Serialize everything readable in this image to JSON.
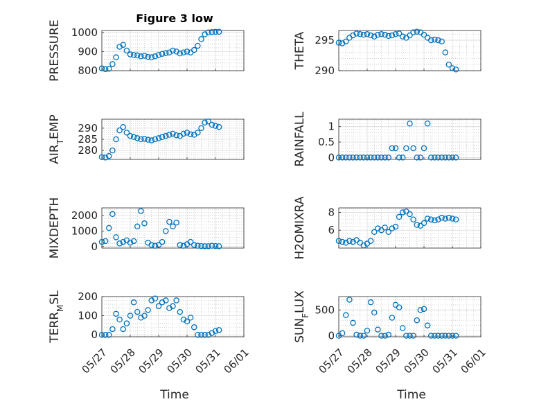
{
  "figure": {
    "title": "Figure 3 low",
    "xlabel": "Time",
    "x_tick_labels": [
      "05/27",
      "05/28",
      "05/29",
      "05/30",
      "05/31",
      "06/01"
    ]
  },
  "colors": {
    "marker": "#0072BD",
    "grid": "#c8c8c8",
    "axis": "#262626"
  },
  "chart_data": [
    {
      "type": "scatter",
      "marker": "circle-open",
      "ylabel": "PRESSURE",
      "title": "Figure 3 low",
      "x_range": [
        "05/27",
        "06/01"
      ],
      "ylim": [
        800,
        1010
      ],
      "yticks": [
        800,
        900,
        1000
      ],
      "series": [
        {
          "x": [
            "05/27 00:00",
            "05/27 03:00",
            "05/27 06:00",
            "05/27 09:00",
            "05/27 12:00",
            "05/27 15:00",
            "05/27 18:00",
            "05/27 21:00",
            "05/28 00:00",
            "05/28 03:00",
            "05/28 06:00",
            "05/28 09:00",
            "05/28 12:00",
            "05/28 15:00",
            "05/28 18:00",
            "05/28 21:00",
            "05/29 00:00",
            "05/29 03:00",
            "05/29 06:00",
            "05/29 09:00",
            "05/29 12:00",
            "05/29 15:00",
            "05/29 18:00",
            "05/29 21:00",
            "05/30 00:00",
            "05/30 03:00",
            "05/30 06:00",
            "05/30 09:00",
            "05/30 12:00",
            "05/30 15:00",
            "05/30 18:00",
            "05/30 21:00",
            "05/31 00:00",
            "05/31 03:00"
          ],
          "y": [
            812,
            808,
            810,
            835,
            870,
            925,
            935,
            905,
            885,
            882,
            880,
            875,
            878,
            872,
            870,
            875,
            882,
            888,
            892,
            895,
            905,
            900,
            890,
            895,
            900,
            895,
            908,
            930,
            965,
            990,
            1000,
            1002,
            1003,
            1003
          ]
        }
      ]
    },
    {
      "type": "scatter",
      "marker": "circle-open",
      "ylabel": "THETA",
      "x_range": [
        "05/27",
        "06/01"
      ],
      "ylim": [
        290,
        296.6
      ],
      "yticks": [
        290,
        295
      ],
      "series": [
        {
          "x": [
            "05/27 00:00",
            "05/27 03:00",
            "05/27 06:00",
            "05/27 09:00",
            "05/27 12:00",
            "05/27 15:00",
            "05/27 18:00",
            "05/27 21:00",
            "05/28 00:00",
            "05/28 03:00",
            "05/28 06:00",
            "05/28 09:00",
            "05/28 12:00",
            "05/28 15:00",
            "05/28 18:00",
            "05/28 21:00",
            "05/29 00:00",
            "05/29 03:00",
            "05/29 06:00",
            "05/29 09:00",
            "05/29 12:00",
            "05/29 15:00",
            "05/29 18:00",
            "05/29 21:00",
            "05/30 00:00",
            "05/30 03:00",
            "05/30 06:00",
            "05/30 09:00",
            "05/30 12:00",
            "05/30 15:00",
            "05/30 18:00",
            "05/30 21:00",
            "05/31 00:00",
            "05/31 03:00"
          ],
          "y": [
            294.6,
            294.5,
            294.8,
            295.4,
            295.8,
            296.1,
            296.0,
            295.9,
            296.0,
            295.8,
            295.6,
            295.9,
            296.0,
            295.9,
            295.7,
            295.8,
            296.0,
            296.1,
            295.6,
            295.4,
            295.8,
            296.3,
            296.4,
            296.3,
            295.9,
            295.4,
            295.0,
            295.1,
            295.0,
            294.8,
            293.0,
            291.0,
            290.4,
            290.2
          ]
        }
      ]
    },
    {
      "type": "scatter",
      "marker": "circle-open",
      "ylabel": "AIR_TEMP",
      "x_range": [
        "05/27",
        "06/01"
      ],
      "ylim": [
        276,
        294
      ],
      "yticks": [
        280,
        285,
        290
      ],
      "series": [
        {
          "x": [
            "05/27 00:00",
            "05/27 03:00",
            "05/27 06:00",
            "05/27 09:00",
            "05/27 12:00",
            "05/27 15:00",
            "05/27 18:00",
            "05/27 21:00",
            "05/28 00:00",
            "05/28 03:00",
            "05/28 06:00",
            "05/28 09:00",
            "05/28 12:00",
            "05/28 15:00",
            "05/28 18:00",
            "05/28 21:00",
            "05/29 00:00",
            "05/29 03:00",
            "05/29 06:00",
            "05/29 09:00",
            "05/29 12:00",
            "05/29 15:00",
            "05/29 18:00",
            "05/29 21:00",
            "05/30 00:00",
            "05/30 03:00",
            "05/30 06:00",
            "05/30 09:00",
            "05/30 12:00",
            "05/30 15:00",
            "05/30 18:00",
            "05/30 21:00",
            "05/31 00:00",
            "05/31 03:00"
          ],
          "y": [
            277.0,
            276.8,
            277.5,
            280.0,
            285.0,
            289.0,
            290.5,
            288.0,
            286.5,
            286.0,
            285.5,
            285.0,
            285.2,
            284.8,
            284.5,
            285.0,
            285.5,
            286.0,
            286.5,
            287.0,
            287.5,
            286.8,
            286.5,
            287.5,
            288.0,
            287.2,
            287.0,
            288.0,
            290.0,
            292.5,
            293.0,
            291.5,
            291.0,
            290.5
          ]
        }
      ]
    },
    {
      "type": "scatter",
      "marker": "circle-open",
      "ylabel": "RAINFALL",
      "x_range": [
        "05/27",
        "06/01"
      ],
      "ylim": [
        -0.06,
        1.24
      ],
      "yticks": [
        0,
        0.5,
        1
      ],
      "series": [
        {
          "x": [
            "05/27 00:00",
            "05/27 03:00",
            "05/27 06:00",
            "05/27 09:00",
            "05/27 12:00",
            "05/27 15:00",
            "05/27 18:00",
            "05/27 21:00",
            "05/28 00:00",
            "05/28 03:00",
            "05/28 06:00",
            "05/28 09:00",
            "05/28 12:00",
            "05/28 15:00",
            "05/28 18:00",
            "05/28 21:00",
            "05/29 00:00",
            "05/29 03:00",
            "05/29 06:00",
            "05/29 09:00",
            "05/29 12:00",
            "05/29 15:00",
            "05/29 18:00",
            "05/29 21:00",
            "05/30 00:00",
            "05/30 03:00",
            "05/30 06:00",
            "05/30 09:00",
            "05/30 12:00",
            "05/30 15:00",
            "05/30 18:00",
            "05/30 21:00",
            "05/31 00:00",
            "05/31 03:00"
          ],
          "y": [
            0,
            0,
            0,
            0,
            0,
            0,
            0,
            0,
            0,
            0,
            0,
            0,
            0,
            0,
            0,
            0.3,
            0.3,
            0,
            0,
            0.3,
            1.1,
            0.3,
            0,
            0,
            0.3,
            1.1,
            0,
            0,
            0,
            0,
            0,
            0,
            0,
            0
          ]
        }
      ]
    },
    {
      "type": "scatter",
      "marker": "circle-open",
      "ylabel": "MIXDEPTH",
      "x_range": [
        "05/27",
        "06/01"
      ],
      "ylim": [
        -100,
        2500
      ],
      "yticks": [
        0,
        1000,
        2000
      ],
      "series": [
        {
          "x": [
            "05/27 00:00",
            "05/27 03:00",
            "05/27 06:00",
            "05/27 09:00",
            "05/27 12:00",
            "05/27 15:00",
            "05/27 18:00",
            "05/27 21:00",
            "05/28 00:00",
            "05/28 03:00",
            "05/28 06:00",
            "05/28 09:00",
            "05/28 12:00",
            "05/28 15:00",
            "05/28 18:00",
            "05/28 21:00",
            "05/29 00:00",
            "05/29 03:00",
            "05/29 06:00",
            "05/29 09:00",
            "05/29 12:00",
            "05/29 15:00",
            "05/29 18:00",
            "05/29 21:00",
            "05/30 00:00",
            "05/30 03:00",
            "05/30 06:00",
            "05/30 09:00",
            "05/30 12:00",
            "05/30 15:00",
            "05/30 18:00",
            "05/30 21:00",
            "05/31 00:00",
            "05/31 03:00"
          ],
          "y": [
            300,
            350,
            1200,
            2100,
            600,
            200,
            300,
            400,
            250,
            350,
            1300,
            2300,
            1500,
            250,
            100,
            50,
            100,
            300,
            1000,
            1600,
            1300,
            1550,
            100,
            50,
            150,
            300,
            100,
            50,
            30,
            20,
            20,
            50,
            30,
            20
          ]
        }
      ]
    },
    {
      "type": "scatter",
      "marker": "circle-open",
      "ylabel": "H2OMIXRA",
      "x_range": [
        "05/27",
        "06/01"
      ],
      "ylim": [
        4,
        8.5
      ],
      "yticks": [
        6,
        8
      ],
      "series": [
        {
          "x": [
            "05/27 00:00",
            "05/27 03:00",
            "05/27 06:00",
            "05/27 09:00",
            "05/27 12:00",
            "05/27 15:00",
            "05/27 18:00",
            "05/27 21:00",
            "05/28 00:00",
            "05/28 03:00",
            "05/28 06:00",
            "05/28 09:00",
            "05/28 12:00",
            "05/28 15:00",
            "05/28 18:00",
            "05/28 21:00",
            "05/29 00:00",
            "05/29 03:00",
            "05/29 06:00",
            "05/29 09:00",
            "05/29 12:00",
            "05/29 15:00",
            "05/29 18:00",
            "05/29 21:00",
            "05/30 00:00",
            "05/30 03:00",
            "05/30 06:00",
            "05/30 09:00",
            "05/30 12:00",
            "05/30 15:00",
            "05/30 18:00",
            "05/30 21:00",
            "05/31 00:00",
            "05/31 03:00"
          ],
          "y": [
            4.8,
            4.7,
            4.6,
            4.8,
            4.7,
            4.9,
            4.6,
            4.3,
            4.5,
            4.8,
            5.8,
            6.2,
            6.0,
            6.3,
            5.8,
            6.2,
            6.4,
            7.5,
            8.0,
            8.1,
            7.8,
            7.2,
            6.6,
            6.5,
            6.8,
            7.3,
            7.2,
            7.1,
            7.2,
            7.4,
            7.3,
            7.4,
            7.3,
            7.2
          ]
        }
      ]
    },
    {
      "type": "scatter",
      "marker": "circle-open",
      "ylabel": "TERR_MSL",
      "x_range": [
        "05/27",
        "06/01"
      ],
      "ylim": [
        -10,
        200
      ],
      "yticks": [
        0,
        100,
        200
      ],
      "series": [
        {
          "x": [
            "05/27 00:00",
            "05/27 03:00",
            "05/27 06:00",
            "05/27 09:00",
            "05/27 12:00",
            "05/27 15:00",
            "05/27 18:00",
            "05/27 21:00",
            "05/28 00:00",
            "05/28 03:00",
            "05/28 06:00",
            "05/28 09:00",
            "05/28 12:00",
            "05/28 15:00",
            "05/28 18:00",
            "05/28 21:00",
            "05/29 00:00",
            "05/29 03:00",
            "05/29 06:00",
            "05/29 09:00",
            "05/29 12:00",
            "05/29 15:00",
            "05/29 18:00",
            "05/29 21:00",
            "05/30 00:00",
            "05/30 03:00",
            "05/30 06:00",
            "05/30 09:00",
            "05/30 12:00",
            "05/30 15:00",
            "05/30 18:00",
            "05/30 21:00",
            "05/31 00:00",
            "05/31 03:00"
          ],
          "y": [
            0,
            0,
            0,
            30,
            110,
            80,
            30,
            60,
            100,
            170,
            120,
            90,
            100,
            130,
            180,
            190,
            150,
            170,
            180,
            140,
            150,
            180,
            120,
            80,
            70,
            90,
            40,
            0,
            0,
            0,
            0,
            10,
            20,
            25
          ]
        }
      ]
    },
    {
      "type": "scatter",
      "marker": "circle-open",
      "ylabel": "SUN_FLUX",
      "x_range": [
        "05/27",
        "06/01"
      ],
      "ylim": [
        -20,
        760
      ],
      "yticks": [
        0,
        500
      ],
      "series": [
        {
          "x": [
            "05/27 00:00",
            "05/27 03:00",
            "05/27 06:00",
            "05/27 09:00",
            "05/27 12:00",
            "05/27 15:00",
            "05/27 18:00",
            "05/27 21:00",
            "05/28 00:00",
            "05/28 03:00",
            "05/28 06:00",
            "05/28 09:00",
            "05/28 12:00",
            "05/28 15:00",
            "05/28 18:00",
            "05/28 21:00",
            "05/29 00:00",
            "05/29 03:00",
            "05/29 06:00",
            "05/29 09:00",
            "05/29 12:00",
            "05/29 15:00",
            "05/29 18:00",
            "05/29 21:00",
            "05/30 00:00",
            "05/30 03:00",
            "05/30 06:00",
            "05/30 09:00",
            "05/30 12:00",
            "05/30 15:00",
            "05/30 18:00",
            "05/30 21:00",
            "05/31 00:00",
            "05/31 03:00"
          ],
          "y": [
            0,
            50,
            400,
            700,
            250,
            20,
            0,
            0,
            100,
            650,
            450,
            120,
            0,
            0,
            20,
            350,
            600,
            550,
            150,
            0,
            0,
            0,
            300,
            500,
            520,
            200,
            0,
            0,
            0,
            0,
            0,
            0,
            0,
            0
          ]
        }
      ]
    }
  ]
}
